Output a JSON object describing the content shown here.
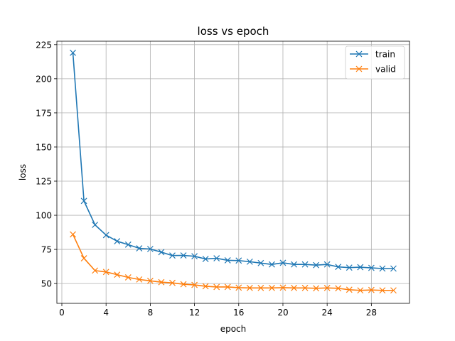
{
  "chart_data": {
    "type": "line",
    "title": "loss vs epoch",
    "xlabel": "epoch",
    "ylabel": "loss",
    "xlim": [
      -0.45,
      31.45
    ],
    "ylim": [
      35.5,
      227.5
    ],
    "xticks": [
      0,
      4,
      8,
      12,
      16,
      20,
      24,
      28
    ],
    "yticks": [
      50,
      75,
      100,
      125,
      150,
      175,
      200,
      225
    ],
    "grid": true,
    "legend_position": "top-right",
    "x": [
      1,
      2,
      3,
      4,
      5,
      6,
      7,
      8,
      9,
      10,
      11,
      12,
      13,
      14,
      15,
      16,
      17,
      18,
      19,
      20,
      21,
      22,
      23,
      24,
      25,
      26,
      27,
      28,
      29,
      30
    ],
    "series": [
      {
        "name": "train",
        "color": "#1f77b4",
        "marker": "x",
        "values": [
          219,
          110.5,
          93,
          85.5,
          81,
          78.5,
          75.8,
          75.3,
          73,
          70.5,
          70.6,
          70,
          68,
          68.5,
          67,
          66.8,
          66,
          65,
          64,
          65.2,
          64,
          64,
          63.5,
          64,
          62.2,
          61.7,
          62,
          61.5,
          61,
          61
        ]
      },
      {
        "name": "valid",
        "color": "#ff7f0e",
        "marker": "x",
        "values": [
          86,
          68.5,
          59.5,
          58.5,
          56.5,
          54.5,
          53,
          52,
          51,
          50.5,
          49.5,
          49,
          48,
          47.5,
          47.5,
          47,
          46.8,
          46.8,
          46.8,
          47,
          46.8,
          46.8,
          46.5,
          46.8,
          46.5,
          45.5,
          45,
          45.3,
          45,
          45
        ]
      }
    ]
  }
}
